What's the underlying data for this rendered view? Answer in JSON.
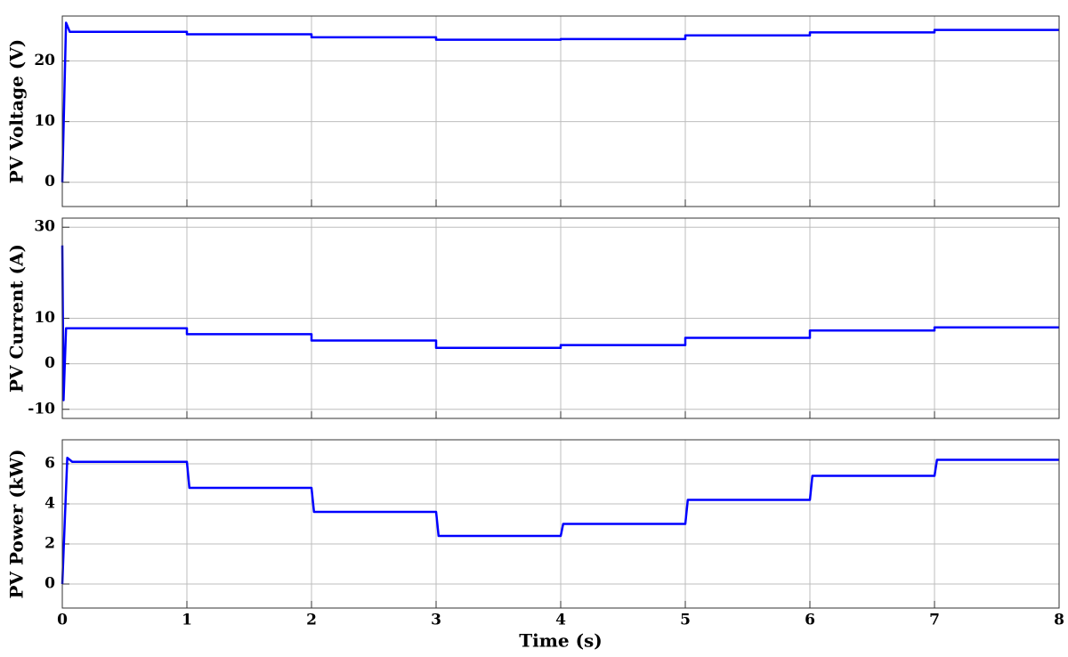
{
  "chart_data": [
    {
      "type": "line",
      "ylabel": "PV Voltage (V)",
      "color": "#0000ff",
      "grid": true,
      "xlim": [
        0,
        8
      ],
      "xticks": [
        0,
        1,
        2,
        3,
        4,
        5,
        6,
        7,
        8
      ],
      "ylim": [
        -4,
        27.4
      ],
      "yticks": [
        0,
        10,
        20
      ],
      "x": [
        0,
        0.03,
        0.06,
        1,
        1,
        2,
        2,
        3,
        3,
        4,
        4,
        5,
        5,
        6,
        6,
        7,
        7,
        8
      ],
      "values": [
        0,
        26.3,
        24.8,
        24.8,
        24.4,
        24.4,
        23.9,
        23.9,
        23.5,
        23.5,
        23.6,
        23.6,
        24.2,
        24.2,
        24.7,
        24.7,
        25.1,
        25.1
      ]
    },
    {
      "type": "line",
      "ylabel": "PV Current (A)",
      "color": "#0000ff",
      "grid": true,
      "xlim": [
        0,
        8
      ],
      "xticks": [
        0,
        1,
        2,
        3,
        4,
        5,
        6,
        7,
        8
      ],
      "ylim": [
        -12,
        32
      ],
      "yticks": [
        -10,
        0,
        10,
        30
      ],
      "x": [
        0,
        0.01,
        0.03,
        1,
        1,
        2,
        2,
        3,
        3,
        4,
        4,
        5,
        5,
        6,
        6,
        7,
        7,
        8
      ],
      "values": [
        26,
        -8,
        7.8,
        7.8,
        6.5,
        6.5,
        5.1,
        5.1,
        3.5,
        3.5,
        4.1,
        4.1,
        5.7,
        5.7,
        7.3,
        7.3,
        8.0,
        8.0
      ]
    },
    {
      "type": "line",
      "ylabel": "PV Power (kW)",
      "xlabel": "Time (s)",
      "color": "#0000ff",
      "grid": true,
      "xlim": [
        0,
        8
      ],
      "xticks": [
        0,
        1,
        2,
        3,
        4,
        5,
        6,
        7,
        8
      ],
      "ylim": [
        -1.2,
        7.2
      ],
      "yticks": [
        0,
        2,
        4,
        6
      ],
      "x": [
        0,
        0.04,
        0.08,
        1,
        1.02,
        2,
        2.02,
        3,
        3.02,
        4,
        4.02,
        5,
        5.02,
        6,
        6.02,
        7,
        7.02,
        8
      ],
      "values": [
        0,
        6.3,
        6.1,
        6.1,
        4.8,
        4.8,
        3.6,
        3.6,
        2.4,
        2.4,
        3.0,
        3.0,
        4.2,
        4.2,
        5.4,
        5.4,
        6.2,
        6.2
      ]
    }
  ]
}
